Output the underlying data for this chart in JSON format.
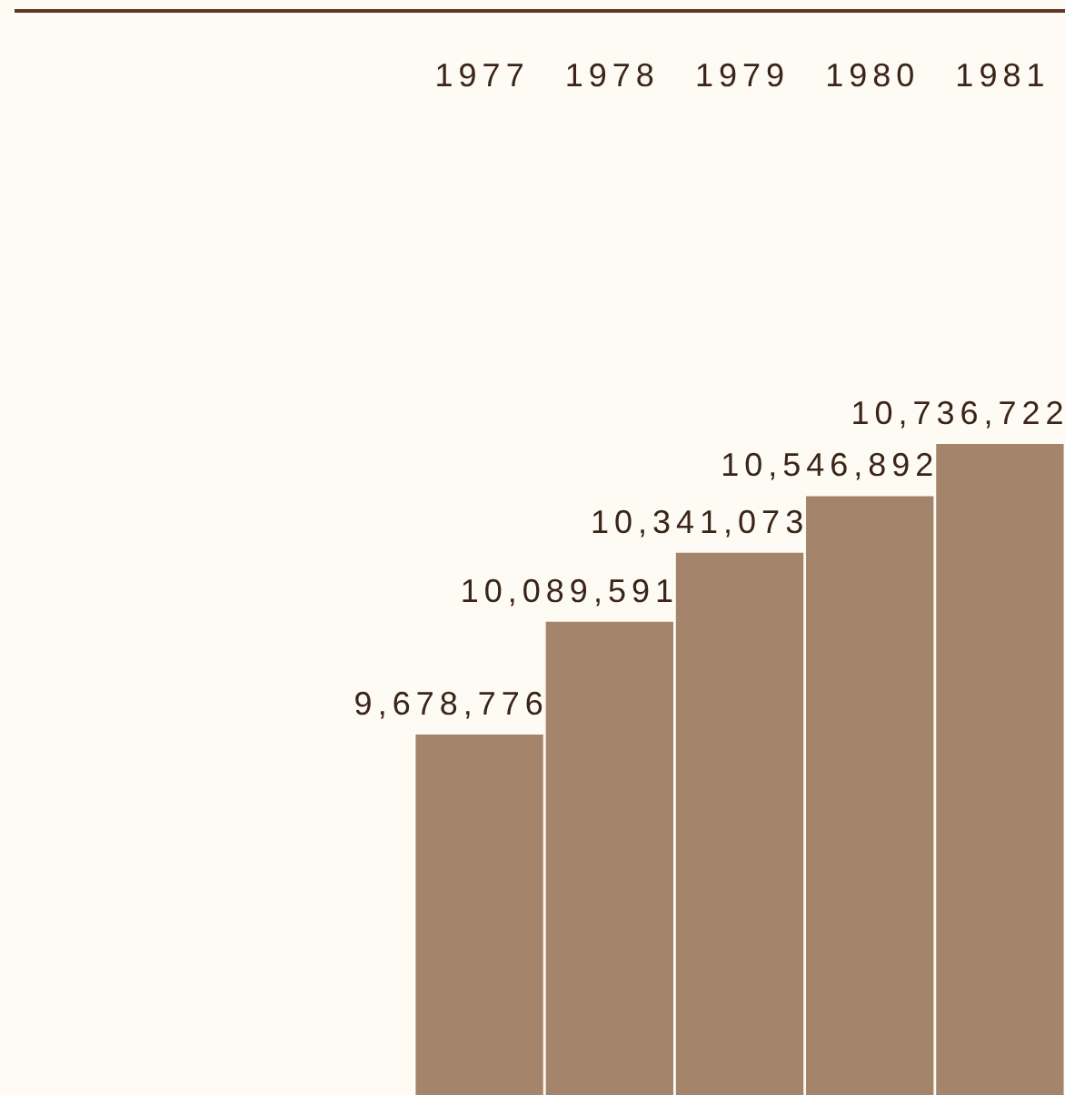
{
  "chart_data": {
    "type": "bar",
    "categories": [
      "1977",
      "1978",
      "1979",
      "1980",
      "1981"
    ],
    "values": [
      9678776,
      10089591,
      10341073,
      10546892,
      10736722
    ],
    "value_labels": [
      "9,678,776",
      "10,089,591",
      "10,341,073",
      "10,546,892",
      "10,736,722"
    ],
    "color": "#a5846c"
  }
}
